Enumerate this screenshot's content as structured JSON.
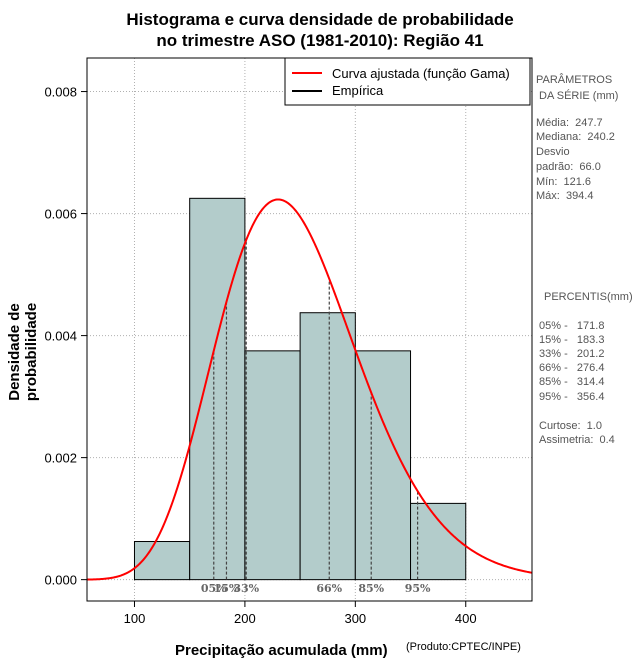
{
  "title_line1": "Histograma e curva densidade de probabilidade",
  "title_line2": "no trimestre ASO (1981-2010): Região 41",
  "chart_data": {
    "type": "histogram",
    "xlabel": "Precipitação acumulada (mm)",
    "ylabel": "Densidade de probabilidade",
    "xlim": [
      57,
      460
    ],
    "ylim": [
      -0.00035,
      0.00855
    ],
    "x_ticks": [
      100,
      200,
      300,
      400
    ],
    "y_ticks": [
      0.0,
      0.002,
      0.004,
      0.006,
      0.008
    ],
    "y_tick_labels": [
      "0.000",
      "0.002",
      "0.004",
      "0.006",
      "0.008"
    ],
    "bins": [
      {
        "from": 100,
        "to": 150,
        "density": 0.000625
      },
      {
        "from": 150,
        "to": 200,
        "density": 0.00625
      },
      {
        "from": 200,
        "to": 250,
        "density": 0.00375
      },
      {
        "from": 250,
        "to": 300,
        "density": 0.004375
      },
      {
        "from": 300,
        "to": 350,
        "density": 0.00375
      },
      {
        "from": 350,
        "to": 400,
        "density": 0.00125
      }
    ],
    "gamma_fit": {
      "shape": 14.08,
      "scale": 17.59
    },
    "percentile_lines": [
      {
        "label": "05%",
        "value": 171.8
      },
      {
        "label": "15%",
        "value": 183.3
      },
      {
        "label": "33%",
        "value": 201.2
      },
      {
        "label": "66%",
        "value": 276.4
      },
      {
        "label": "85%",
        "value": 314.4
      },
      {
        "label": "95%",
        "value": 356.4
      }
    ],
    "legend": [
      "Curva ajustada (função Gama)",
      "Empírica"
    ],
    "colors": {
      "bar_fill": "#b3cccb",
      "curve": "#ff0000",
      "grid": "#b0b0b0",
      "percentile_label": "#666666"
    }
  },
  "stats_panel": {
    "heading1": "PARÂMETROS",
    "heading2": "DA SÉRIE (mm)",
    "media": "Média:  247.7",
    "mediana": "Mediana:  240.2",
    "desvio1": "Desvio",
    "desvio2": "padrão:  66.0",
    "min": "Mín:  121.6",
    "max": "Máx:  394.4"
  },
  "percentis_panel": {
    "heading": "PERCENTIS(mm)",
    "p05": "05% -   171.8",
    "p15": "15% -   183.3",
    "p33": "33% -   201.2",
    "p66": "66% -   276.4",
    "p85": "85% -   314.4",
    "p95": "95% -   356.4",
    "curtose": "Curtose:  1.0",
    "assimetria": "Assimetria:  0.4"
  },
  "product_label": "(Produto:CPTEC/INPE)"
}
